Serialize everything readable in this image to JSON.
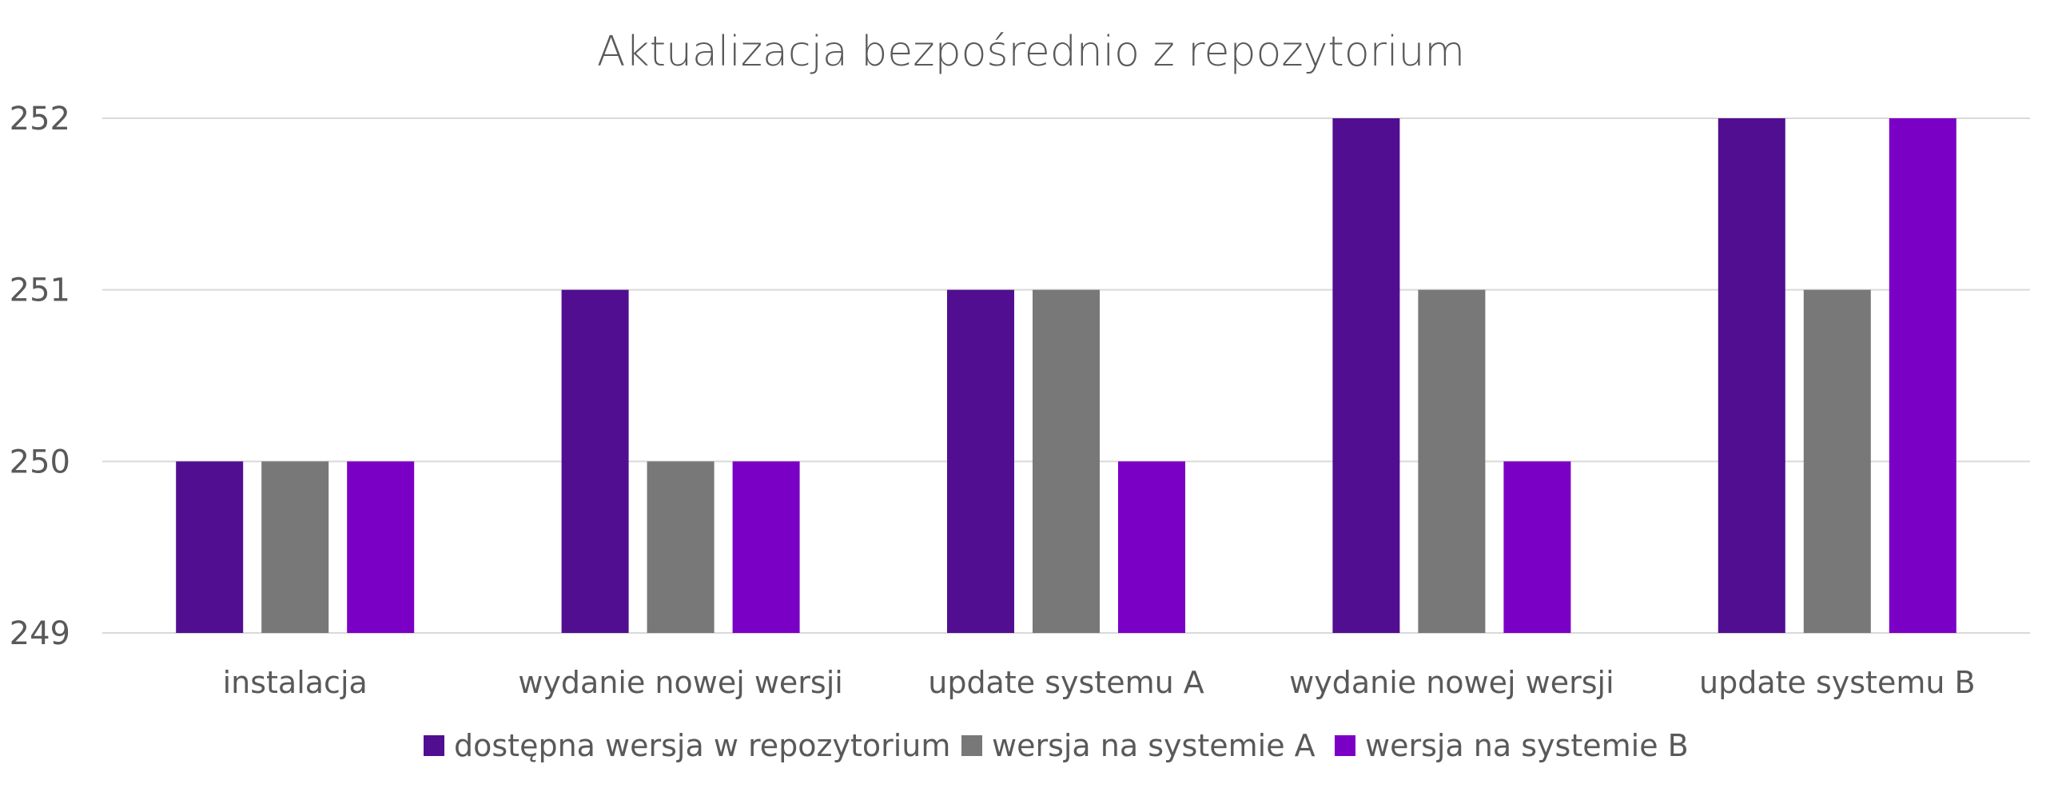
{
  "chart_data": {
    "type": "bar",
    "title": "Aktualizacja bezpośrednio z repozytorium",
    "xlabel": "",
    "ylabel": "",
    "categories": [
      "instalacja",
      "wydanie nowej wersji",
      "update systemu A",
      "wydanie nowej wersji",
      "update systemu B"
    ],
    "series": [
      {
        "name": "dostępna wersja w repozytorium",
        "values": [
          250,
          251,
          251,
          252,
          252
        ],
        "color": "#520e90"
      },
      {
        "name": "wersja na systemie A",
        "values": [
          250,
          250,
          251,
          251,
          251
        ],
        "color": "#787878"
      },
      {
        "name": "wersja na systemie B",
        "values": [
          250,
          250,
          250,
          250,
          252
        ],
        "color": "#7b00c6"
      }
    ],
    "ylim": [
      249,
      252
    ],
    "yticks": [
      249,
      250,
      251,
      252
    ],
    "grid": true,
    "legend_position": "bottom"
  }
}
